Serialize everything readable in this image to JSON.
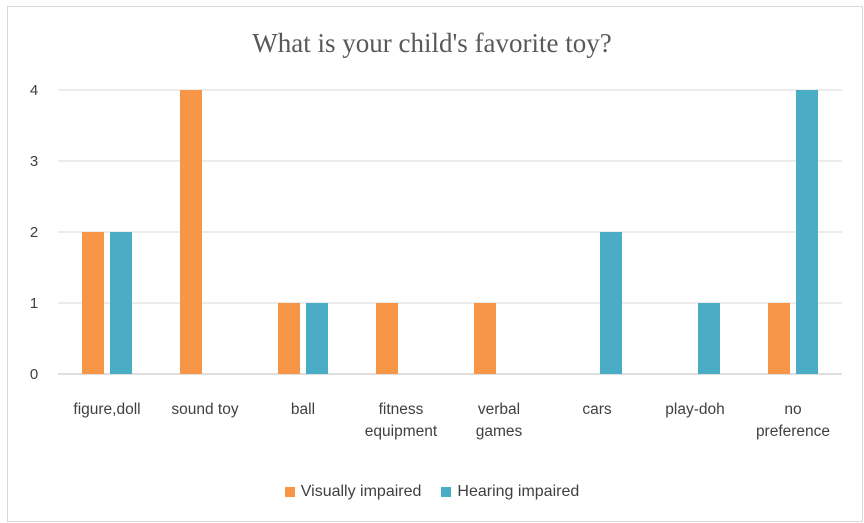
{
  "chart_data": {
    "type": "bar",
    "title": "What is your child's favorite toy?",
    "categories": [
      [
        "figure,doll"
      ],
      [
        "sound toy"
      ],
      [
        "ball"
      ],
      [
        "fitness",
        "equipment"
      ],
      [
        "verbal",
        "games"
      ],
      [
        "cars"
      ],
      [
        "play-doh"
      ],
      [
        "no",
        "preference"
      ]
    ],
    "series": [
      {
        "name": "Visually impaired",
        "color": "#f79646",
        "values": [
          2,
          4,
          1,
          1,
          1,
          0,
          0,
          1
        ]
      },
      {
        "name": "Hearing impaired",
        "color": "#4bacc6",
        "values": [
          2,
          0,
          1,
          0,
          0,
          2,
          1,
          4
        ]
      }
    ],
    "ylim": [
      0,
      4
    ],
    "yticks": [
      0,
      1,
      2,
      3,
      4
    ],
    "grid": true,
    "legend_position": "bottom"
  }
}
